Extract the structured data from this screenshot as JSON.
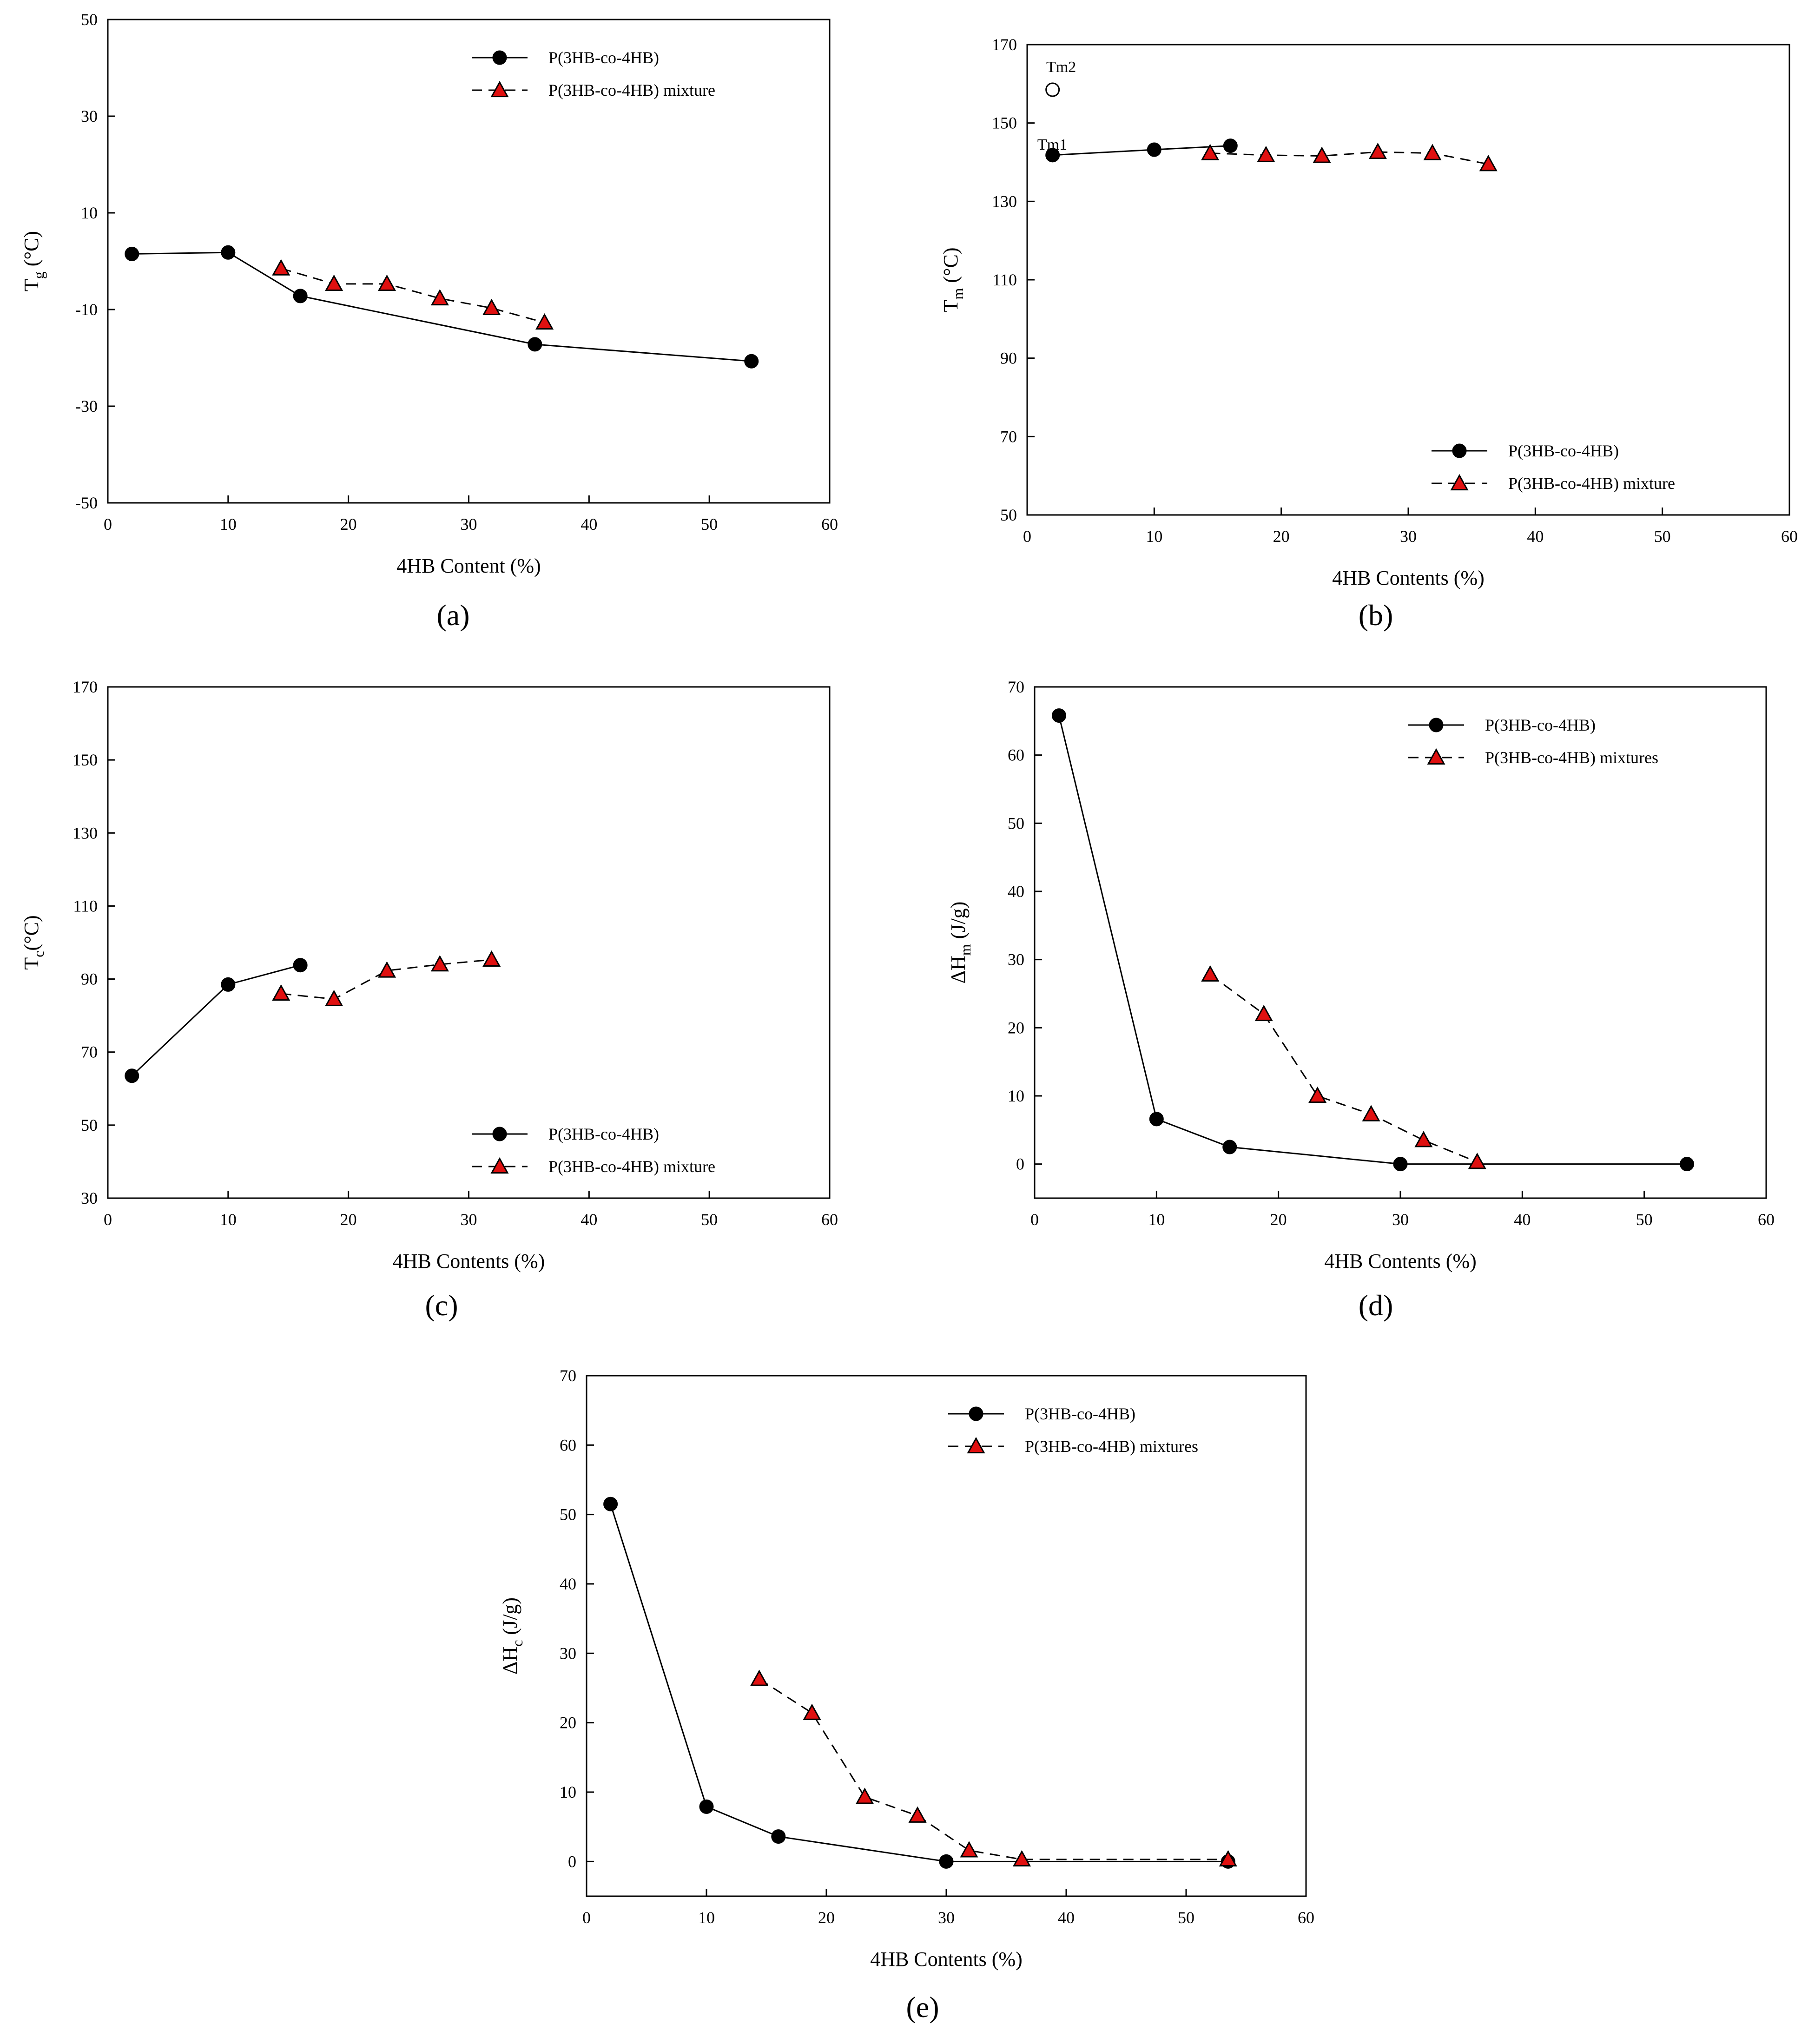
{
  "colors": {
    "series_a": "#000000",
    "series_b_fill": "#e01010",
    "series_b_stroke": "#000000",
    "axis": "#000000"
  },
  "chart_data": [
    {
      "id": "a",
      "type": "line",
      "panel_label": "(a)",
      "xlabel": "4HB Content (%)",
      "ylabel_main": "T",
      "ylabel_sub": "g",
      "ylabel_tail": " (°C)",
      "xlim": [
        0,
        60
      ],
      "ylim": [
        -50,
        50
      ],
      "xticks": [
        "0",
        "10",
        "20",
        "30",
        "40",
        "50",
        "60"
      ],
      "yticks": [
        "-50",
        "-30",
        "-10",
        "10",
        "30",
        "50"
      ],
      "legend_position": "top-right",
      "series": [
        {
          "name": "P(3HB-co-4HB)",
          "marker": "circle",
          "line": "solid",
          "x": [
            2,
            10,
            16,
            35.5,
            53.5
          ],
          "y": [
            1.5,
            1.8,
            -7.2,
            -17.2,
            -20.7
          ]
        },
        {
          "name": "P(3HB-co-4HB) mixture",
          "marker": "triangle",
          "line": "dashed",
          "x": [
            14.4,
            18.8,
            23.2,
            27.6,
            31.9,
            36.3
          ],
          "y": [
            -1.5,
            -4.7,
            -4.7,
            -7.7,
            -9.7,
            -12.7
          ]
        }
      ],
      "annotations": []
    },
    {
      "id": "b",
      "type": "line",
      "panel_label": "(b)",
      "xlabel": "4HB Contents (%)",
      "ylabel_main": "T",
      "ylabel_sub": "m",
      "ylabel_tail": " (°C)",
      "xlim": [
        0,
        60
      ],
      "ylim": [
        50,
        170
      ],
      "xticks": [
        "0",
        "10",
        "20",
        "30",
        "40",
        "50",
        "60"
      ],
      "yticks": [
        "50",
        "70",
        "90",
        "110",
        "130",
        "150",
        "170"
      ],
      "legend_position": "bottom-right",
      "series": [
        {
          "name": "P(3HB-co-4HB)",
          "marker": "circle",
          "line": "solid",
          "x": [
            2,
            10,
            16
          ],
          "y": [
            141.8,
            143.2,
            144.2
          ]
        },
        {
          "name": "P(3HB-co-4HB) mixture",
          "marker": "triangle",
          "line": "dashed",
          "x": [
            14.4,
            18.8,
            23.2,
            27.6,
            31.9,
            36.3
          ],
          "y": [
            142.3,
            141.8,
            141.6,
            142.6,
            142.3,
            139.5
          ]
        }
      ],
      "open_points": [
        {
          "x": 2,
          "y": 158.5
        }
      ],
      "annotations": [
        {
          "text": "Tm2",
          "x": 1.5,
          "y": 163
        },
        {
          "text": "Tm1",
          "x": 0.8,
          "y": 143.2
        }
      ]
    },
    {
      "id": "c",
      "type": "line",
      "panel_label": "(c)",
      "xlabel": "4HB Contents (%)",
      "ylabel_main": "T",
      "ylabel_sub": "c",
      "ylabel_tail": "(°C)",
      "xlim": [
        0,
        60
      ],
      "ylim": [
        30,
        170
      ],
      "xticks": [
        "0",
        "10",
        "20",
        "30",
        "40",
        "50",
        "60"
      ],
      "yticks": [
        "30",
        "50",
        "70",
        "90",
        "110",
        "130",
        "150",
        "170"
      ],
      "legend_position": "bottom-right",
      "series": [
        {
          "name": "P(3HB-co-4HB)",
          "marker": "circle",
          "line": "solid",
          "x": [
            2,
            10,
            16
          ],
          "y": [
            63.5,
            88.5,
            93.8
          ]
        },
        {
          "name": "P(3HB-co-4HB) mixture",
          "marker": "triangle",
          "line": "dashed",
          "x": [
            14.4,
            18.8,
            23.2,
            27.6,
            31.9
          ],
          "y": [
            86,
            84.5,
            92.3,
            94,
            95.3
          ]
        }
      ],
      "annotations": []
    },
    {
      "id": "d",
      "type": "line",
      "panel_label": "(d)",
      "xlabel": "4HB Contents (%)",
      "ylabel_main": "ΔH",
      "ylabel_sub": "m",
      "ylabel_tail": " (J/g)",
      "xlim": [
        0,
        60
      ],
      "ylim": [
        -5,
        70
      ],
      "xticks": [
        "0",
        "10",
        "20",
        "30",
        "40",
        "50",
        "60"
      ],
      "yticks": [
        "0",
        "10",
        "20",
        "30",
        "40",
        "50",
        "60",
        "70"
      ],
      "legend_position": "top-right",
      "series": [
        {
          "name": "P(3HB-co-4HB)",
          "marker": "circle",
          "line": "solid",
          "x": [
            2,
            10,
            16,
            30,
            53.5
          ],
          "y": [
            65.8,
            6.6,
            2.5,
            0,
            0
          ]
        },
        {
          "name": "P(3HB-co-4HB) mixtures",
          "marker": "triangle",
          "line": "dashed",
          "x": [
            14.4,
            18.8,
            23.2,
            27.6,
            31.9,
            36.3
          ],
          "y": [
            27.8,
            22,
            10,
            7.3,
            3.5,
            0.3
          ]
        }
      ],
      "annotations": []
    },
    {
      "id": "e",
      "type": "line",
      "panel_label": "(e)",
      "xlabel": "4HB Contents (%)",
      "ylabel_main": "ΔH",
      "ylabel_sub": "c",
      "ylabel_tail": " (J/g)",
      "xlim": [
        0,
        60
      ],
      "ylim": [
        -5,
        70
      ],
      "xticks": [
        "0",
        "10",
        "20",
        "30",
        "40",
        "50",
        "60"
      ],
      "yticks": [
        "0",
        "10",
        "20",
        "30",
        "40",
        "50",
        "60",
        "70"
      ],
      "legend_position": "top-right",
      "series": [
        {
          "name": "P(3HB-co-4HB)",
          "marker": "circle",
          "line": "solid",
          "x": [
            2,
            10,
            16,
            30,
            53.5
          ],
          "y": [
            51.5,
            7.9,
            3.6,
            0,
            0
          ]
        },
        {
          "name": "P(3HB-co-4HB) mixtures",
          "marker": "triangle",
          "line": "dashed",
          "x": [
            14.4,
            18.8,
            23.2,
            27.6,
            31.9,
            36.3,
            53.5
          ],
          "y": [
            26.3,
            21.4,
            9.3,
            6.6,
            1.6,
            0.3,
            0.3
          ]
        }
      ],
      "annotations": []
    }
  ]
}
